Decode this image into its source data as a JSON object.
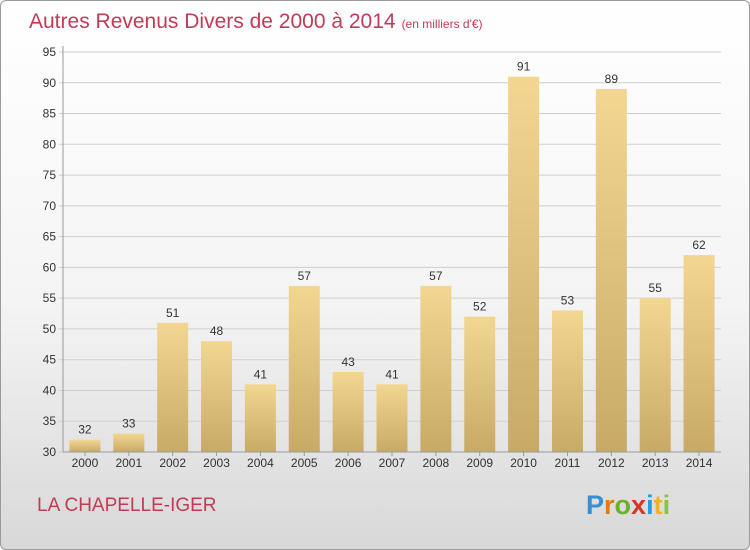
{
  "header": {
    "title": "Autres Revenus Divers de 2000 à 2014",
    "subtitle": "(en milliers d'€)"
  },
  "footer": {
    "location": "LA CHAPELLE-IGER",
    "logo_text": "Proxiti"
  },
  "colors": {
    "title": "#c23b55",
    "bar_top": "#f3d791",
    "bar_bottom": "#c8aa66",
    "grid": "#c8c8c8"
  },
  "chart_data": {
    "type": "bar",
    "title": "Autres Revenus Divers de 2000 à 2014",
    "subtitle": "(en milliers d'€)",
    "categories": [
      "2000",
      "2001",
      "2002",
      "2003",
      "2004",
      "2005",
      "2006",
      "2007",
      "2008",
      "2009",
      "2010",
      "2011",
      "2012",
      "2013",
      "2014"
    ],
    "values": [
      32,
      33,
      51,
      48,
      41,
      57,
      43,
      41,
      57,
      52,
      91,
      53,
      89,
      55,
      62
    ],
    "ylim": [
      30,
      95
    ],
    "yticks": [
      30,
      35,
      40,
      45,
      50,
      55,
      60,
      65,
      70,
      75,
      80,
      85,
      90,
      95
    ],
    "grid": true,
    "data_labels": true
  }
}
